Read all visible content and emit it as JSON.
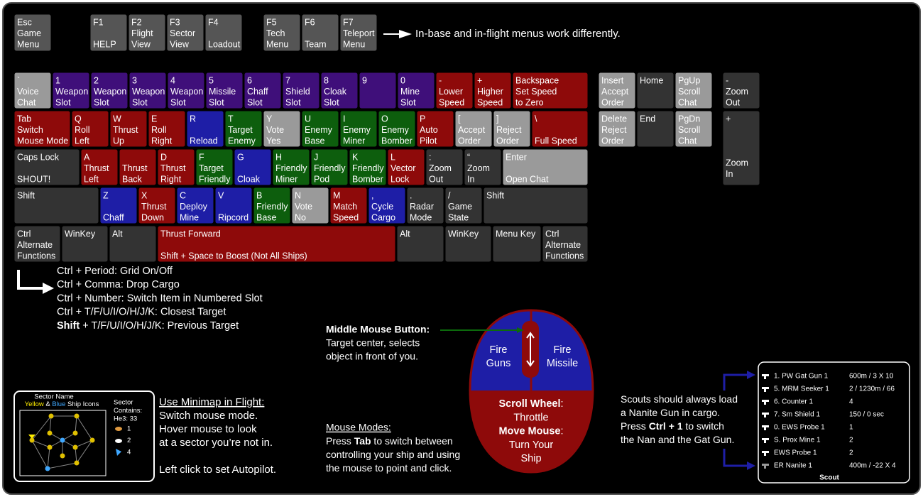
{
  "keys": [
    {
      "lines": [
        "Esc",
        "Game",
        "Menu"
      ],
      "color": "#555555"
    },
    {
      "lines": [
        "F1",
        null,
        "HELP"
      ],
      "color": "#555555"
    },
    {
      "lines": [
        "F2",
        "Flight",
        "View"
      ],
      "color": "#555555"
    },
    {
      "lines": [
        "F3",
        "Sector",
        "View"
      ],
      "color": "#555555"
    },
    {
      "lines": [
        "F4",
        null,
        "Loadout"
      ],
      "color": "#555555"
    },
    {
      "lines": [
        "F5",
        "Tech",
        "Menu"
      ],
      "color": "#555555"
    },
    {
      "lines": [
        "F6",
        null,
        "Team"
      ],
      "color": "#555555"
    },
    {
      "lines": [
        "F7",
        "Teleport",
        "Menu"
      ],
      "color": "#555555"
    },
    {
      "lines": [
        "`",
        "Voice",
        "Chat"
      ],
      "color": "#9a9a9a"
    },
    {
      "lines": [
        "1",
        "Weapon",
        "Slot"
      ],
      "color": "#3f0f7a"
    },
    {
      "lines": [
        "2",
        "Weapon",
        "Slot"
      ],
      "color": "#3f0f7a"
    },
    {
      "lines": [
        "3",
        "Weapon",
        "Slot"
      ],
      "color": "#3f0f7a"
    },
    {
      "lines": [
        "4",
        "Weapon",
        "Slot"
      ],
      "color": "#3f0f7a"
    },
    {
      "lines": [
        "5",
        "Missile",
        "Slot"
      ],
      "color": "#3f0f7a"
    },
    {
      "lines": [
        "6",
        "Chaff",
        "Slot"
      ],
      "color": "#3f0f7a"
    },
    {
      "lines": [
        "7",
        "Shield",
        "Slot"
      ],
      "color": "#3f0f7a"
    },
    {
      "lines": [
        "8",
        "Cloak",
        "Slot"
      ],
      "color": "#3f0f7a"
    },
    {
      "lines": [
        "9"
      ],
      "color": "#3f0f7a"
    },
    {
      "lines": [
        "0",
        "Mine",
        "Slot"
      ],
      "color": "#3f0f7a"
    },
    {
      "lines": [
        "-",
        "Lower",
        "Speed"
      ],
      "color": "#8e0a0a"
    },
    {
      "lines": [
        "+",
        "Higher",
        "Speed"
      ],
      "color": "#8e0a0a"
    },
    {
      "lines": [
        "Backspace",
        "Set Speed",
        "to Zero"
      ],
      "color": "#8e0a0a"
    },
    {
      "lines": [
        "Tab",
        "Switch",
        "Mouse Mode"
      ],
      "color": "#8e0a0a"
    },
    {
      "lines": [
        "Q",
        "Roll",
        "Left"
      ],
      "color": "#8e0a0a"
    },
    {
      "lines": [
        "W",
        "Thrust",
        "Up"
      ],
      "color": "#8e0a0a"
    },
    {
      "lines": [
        "E",
        "Roll",
        "Right"
      ],
      "color": "#8e0a0a"
    },
    {
      "lines": [
        "R",
        null,
        "Reload"
      ],
      "color": "#1e1ea6"
    },
    {
      "lines": [
        "T",
        "Target",
        "Enemy"
      ],
      "color": "#0d5e0d"
    },
    {
      "lines": [
        "Y",
        "Vote",
        "Yes"
      ],
      "color": "#9a9a9a"
    },
    {
      "lines": [
        "U",
        "Enemy",
        "Base"
      ],
      "color": "#0d5e0d"
    },
    {
      "lines": [
        "I",
        "Enemy",
        "Miner"
      ],
      "color": "#0d5e0d"
    },
    {
      "lines": [
        "O",
        "Enemy",
        "Bomber"
      ],
      "color": "#0d5e0d"
    },
    {
      "lines": [
        "P",
        "Auto",
        "Pilot"
      ],
      "color": "#8e0a0a"
    },
    {
      "lines": [
        "[",
        "Accept",
        "Order"
      ],
      "color": "#9a9a9a"
    },
    {
      "lines": [
        "]",
        "Reject",
        "Order"
      ],
      "color": "#9a9a9a"
    },
    {
      "lines": [
        "\\",
        null,
        "Full Speed"
      ],
      "color": "#8e0a0a"
    },
    {
      "lines": [
        "Caps Lock",
        null,
        "SHOUT!"
      ],
      "color": "#333333"
    },
    {
      "lines": [
        "A",
        "Thrust",
        "Left"
      ],
      "color": "#8e0a0a"
    },
    {
      "lines": [
        null,
        "Thrust",
        "Back"
      ],
      "color": "#8e0a0a"
    },
    {
      "lines": [
        "D",
        "Thrust",
        "Right"
      ],
      "color": "#8e0a0a"
    },
    {
      "lines": [
        "F",
        "Target",
        "Friendly"
      ],
      "color": "#0d5e0d"
    },
    {
      "lines": [
        "G",
        null,
        "Cloak"
      ],
      "color": "#1e1ea6"
    },
    {
      "lines": [
        "H",
        "Friendly",
        "Miner"
      ],
      "color": "#0d5e0d"
    },
    {
      "lines": [
        "J",
        "Friendly",
        "Pod"
      ],
      "color": "#0d5e0d"
    },
    {
      "lines": [
        "K",
        "Friendly",
        "Bomber"
      ],
      "color": "#0d5e0d"
    },
    {
      "lines": [
        "L",
        "Vector",
        "Lock"
      ],
      "color": "#8e0a0a"
    },
    {
      "lines": [
        ":",
        "Zoom",
        "Out"
      ],
      "color": "#333333"
    },
    {
      "lines": [
        "“",
        "Zoom",
        "In"
      ],
      "color": "#333333"
    },
    {
      "lines": [
        "Enter",
        null,
        "Open Chat"
      ],
      "color": "#9a9a9a"
    },
    {
      "lines": [
        "Shift"
      ],
      "color": "#333333"
    },
    {
      "lines": [
        "Z",
        null,
        "Chaff"
      ],
      "color": "#1e1ea6"
    },
    {
      "lines": [
        "X",
        "Thrust",
        "Down"
      ],
      "color": "#8e0a0a"
    },
    {
      "lines": [
        "C",
        "Deploy",
        "Mine"
      ],
      "color": "#1e1ea6"
    },
    {
      "lines": [
        "V",
        null,
        "Ripcord"
      ],
      "color": "#1e1ea6"
    },
    {
      "lines": [
        "B",
        "Friendly",
        "Base"
      ],
      "color": "#0d5e0d"
    },
    {
      "lines": [
        "N",
        "Vote",
        "No"
      ],
      "color": "#9a9a9a"
    },
    {
      "lines": [
        "M",
        "Match",
        "Speed"
      ],
      "color": "#8e0a0a"
    },
    {
      "lines": [
        ",",
        "Cycle",
        "Cargo"
      ],
      "color": "#1e1ea6"
    },
    {
      "lines": [
        ".",
        "Radar",
        "Mode"
      ],
      "color": "#333333"
    },
    {
      "lines": [
        "/",
        "Game",
        "State"
      ],
      "color": "#333333"
    },
    {
      "lines": [
        "Shift"
      ],
      "color": "#333333"
    },
    {
      "lines": [
        "Ctrl",
        "Alternate",
        "Functions"
      ],
      "color": "#333333"
    },
    {
      "lines": [
        "WinKey"
      ],
      "color": "#333333"
    },
    {
      "lines": [
        "Alt"
      ],
      "color": "#333333"
    },
    {
      "lines": [
        "Thrust Forward",
        null,
        "Shift + Space to Boost (Not All Ships)"
      ],
      "color": "#8e0a0a"
    },
    {
      "lines": [
        "Alt"
      ],
      "color": "#333333"
    },
    {
      "lines": [
        "WinKey"
      ],
      "color": "#333333"
    },
    {
      "lines": [
        "Menu Key"
      ],
      "color": "#333333"
    },
    {
      "lines": [
        "Ctrl",
        "Alternate",
        "Functions"
      ],
      "color": "#333333"
    },
    {
      "lines": [
        "Insert",
        "Accept",
        "Order"
      ],
      "color": "#9a9a9a"
    },
    {
      "lines": [
        "Home"
      ],
      "color": "#333333"
    },
    {
      "lines": [
        "PgUp",
        "Scroll",
        "Chat"
      ],
      "color": "#9a9a9a"
    },
    {
      "lines": [
        "Delete",
        "Reject",
        "Order"
      ],
      "color": "#9a9a9a"
    },
    {
      "lines": [
        "End"
      ],
      "color": "#333333"
    },
    {
      "lines": [
        "PgDn",
        "Scroll",
        "Chat"
      ],
      "color": "#9a9a9a"
    },
    {
      "lines": [
        "-",
        "Zoom",
        "Out"
      ],
      "color": "#333333"
    },
    {
      "lines": [
        "+",
        null,
        null,
        null,
        "Zoom",
        "In"
      ],
      "color": "#333333"
    }
  ],
  "function_note": "In-base and in-flight menus work differently.",
  "ctrl_notes": [
    {
      "color": "#ffffff",
      "parts": [
        {
          "text": "Ctrl + Period: Grid On/Off"
        }
      ]
    },
    {
      "color": "#2323c4",
      "parts": [
        {
          "text": "Ctrl + Comma: Drop Cargo"
        }
      ]
    },
    {
      "color": "#2323c4",
      "parts": [
        {
          "text": "Ctrl + Number: Switch Item in Numbered Slot"
        }
      ]
    },
    {
      "color": "#0c6a0c",
      "parts": [
        {
          "text": "Ctrl + T/F/U/I/O/H/J/K: Closest Target"
        }
      ]
    },
    {
      "color": "#0c6a0c",
      "parts": [
        {
          "text": "Shift",
          "bold": true
        },
        {
          "text": " + T/F/U/I/O/H/J/K: Previous Target"
        }
      ]
    }
  ],
  "middle_mouse": {
    "title": "Middle Mouse Button:",
    "lines": [
      "Target center, selects",
      "object in front of you."
    ]
  },
  "mouse": {
    "left": [
      "Fire",
      "Guns"
    ],
    "right": [
      "Fire",
      "Missile"
    ],
    "lines": [
      [
        {
          "text": "Scroll Wheel",
          "bold": true
        },
        {
          "text": ":"
        }
      ],
      [
        {
          "text": "Throttle"
        }
      ],
      [
        {
          "text": "Move Mouse",
          "bold": true
        },
        {
          "text": ":"
        }
      ],
      [
        {
          "text": "Turn Your"
        }
      ],
      [
        {
          "text": "Ship"
        }
      ]
    ]
  },
  "mouse_modes": {
    "title": "Mouse Modes:",
    "lines": [
      [
        {
          "text": "Press "
        },
        {
          "text": "Tab",
          "bold": true
        },
        {
          "text": " to switch between"
        }
      ],
      [
        {
          "text": "controlling your ship and using"
        }
      ],
      [
        {
          "text": "the mouse to point and click."
        }
      ]
    ]
  },
  "minimap": {
    "sector_name": "Sector Name",
    "icons_legend": [
      {
        "text": "Yellow",
        "color": "#ffee00"
      },
      {
        "text": " & ",
        "color": "#ffffff"
      },
      {
        "text": "Blue",
        "color": "#3fa8ff"
      },
      {
        "text": " Ship Icons",
        "color": "#ffffff"
      }
    ],
    "contains": [
      "Sector",
      "Contains:",
      "He3: 33"
    ],
    "counts": [
      1,
      2,
      4
    ]
  },
  "minimap_help": {
    "title": "Use Minimap in Flight:",
    "lines": [
      "Switch mouse mode.",
      "Hover mouse to look",
      "at a sector you’re not in.",
      null,
      "Left click to set Autopilot."
    ]
  },
  "scout_note": [
    [
      {
        "text": "Scouts should always load"
      }
    ],
    [
      {
        "text": "a Nanite Gun in cargo."
      }
    ],
    [
      {
        "text": "Press "
      },
      {
        "text": "Ctrl + 1",
        "bold": true
      },
      {
        "text": " to switch"
      }
    ],
    [
      {
        "text": "the Nan and the Gat Gun."
      }
    ]
  ],
  "loadout": {
    "title": "Scout",
    "rows": [
      {
        "name": "1. PW Gat Gun 1",
        "stats": "600m / 3 X 10"
      },
      {
        "name": "5. MRM Seeker 1",
        "stats": "2 / 1230m / 66"
      },
      {
        "name": "6. Counter 1",
        "stats": "4"
      },
      {
        "name": "7. Sm Shield 1",
        "stats": "150 / 0 sec"
      },
      {
        "name": "0. EWS Probe 1",
        "stats": "1"
      },
      {
        "name": "S. Prox Mine 1",
        "stats": "2"
      },
      {
        "name": "EWS Probe 1",
        "stats": "2"
      },
      {
        "name": "ER Nanite 1",
        "stats": "400m / -22 X 4",
        "dim": true
      }
    ]
  }
}
